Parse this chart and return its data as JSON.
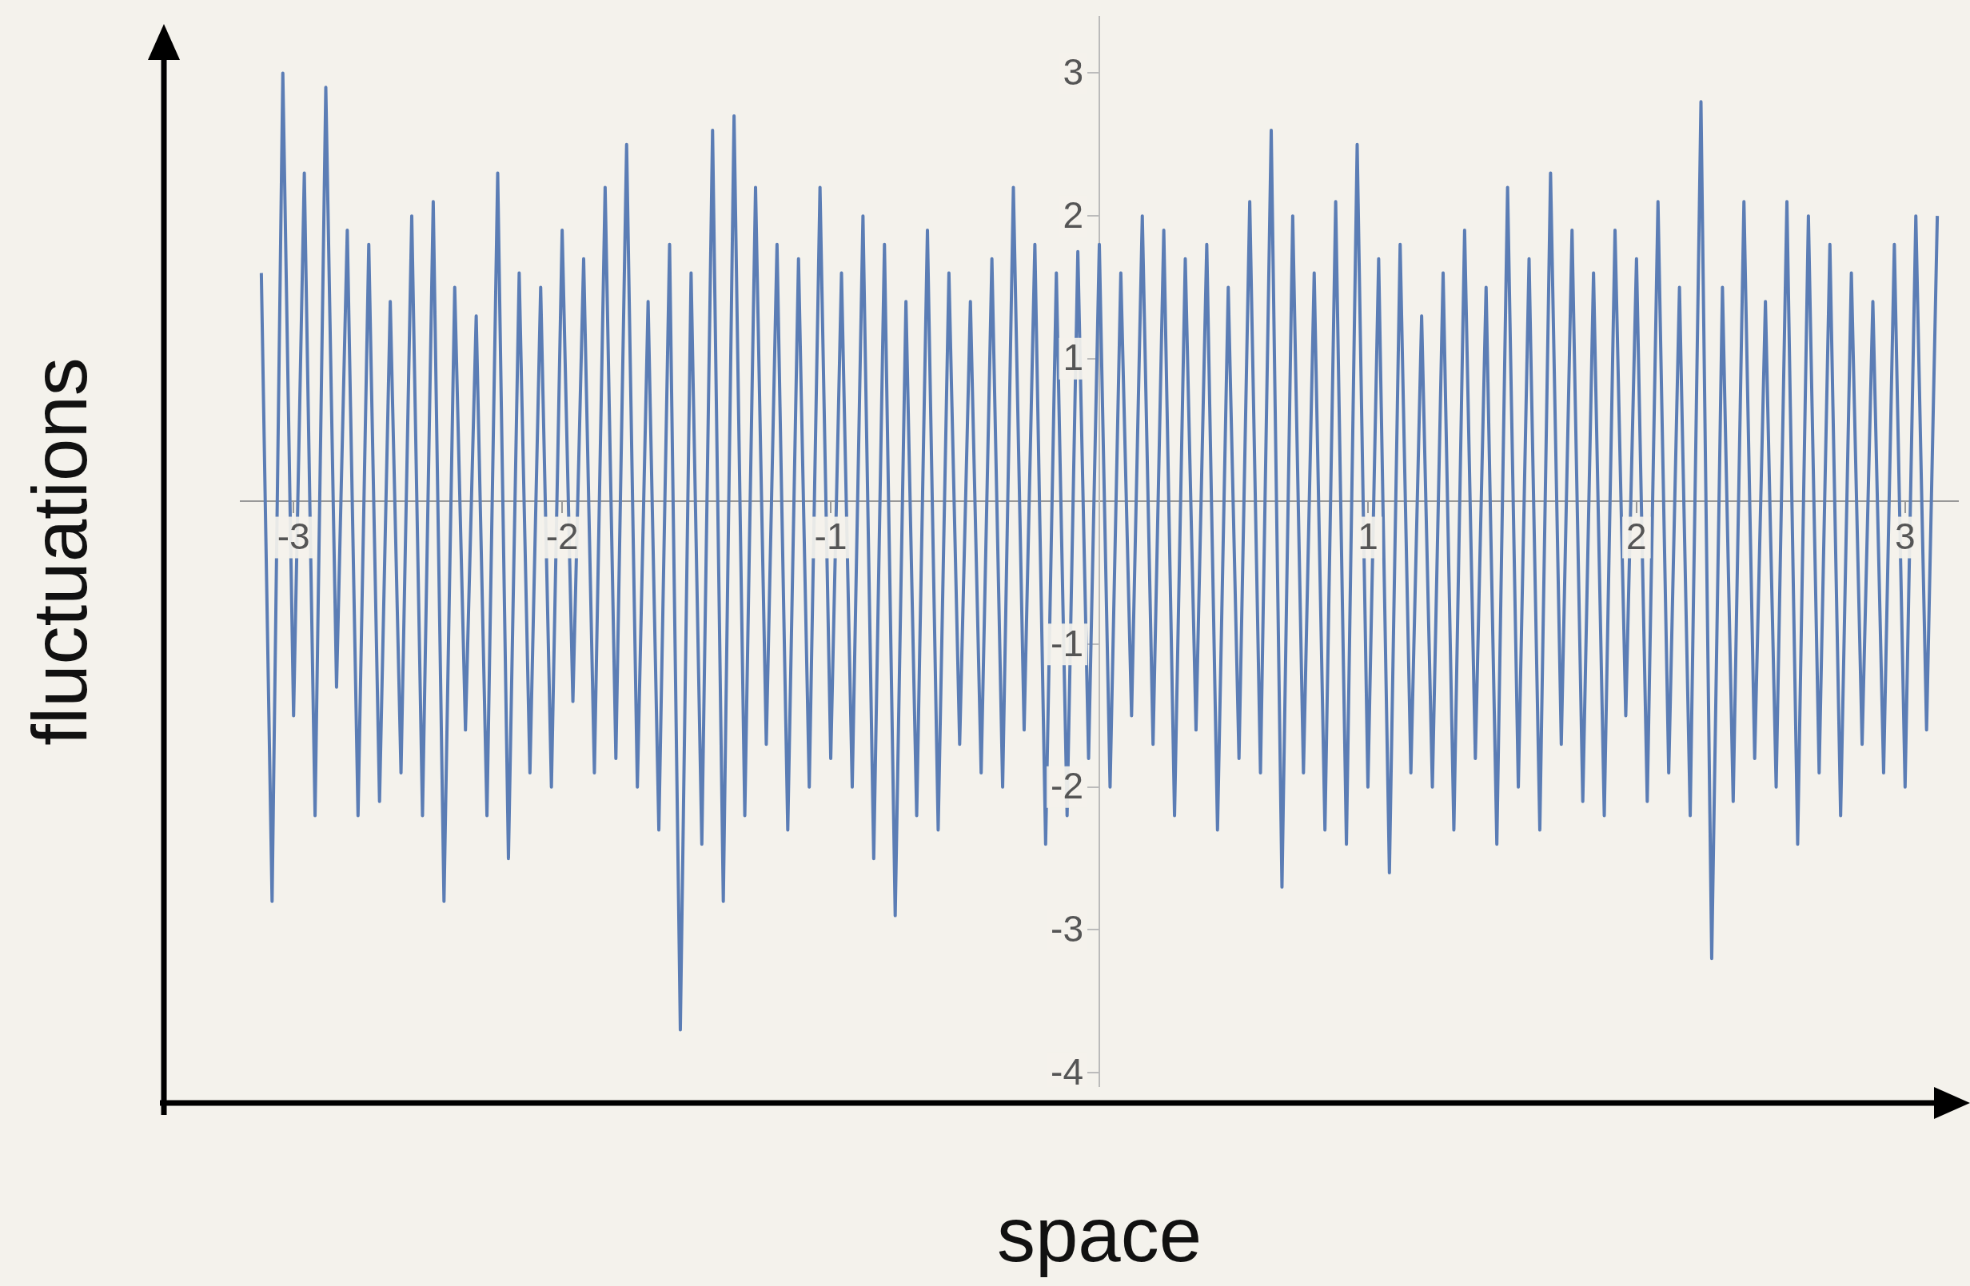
{
  "chart_data": {
    "type": "line",
    "xlabel": "space",
    "ylabel": "fluctuations",
    "color": "#5b7db5",
    "marker": "none",
    "grid": false,
    "legend": false,
    "xlim": [
      -3.2,
      3.2
    ],
    "ylim": [
      -4.1,
      3.4
    ],
    "xticks": [
      -3,
      -2,
      -1,
      1,
      2,
      3
    ],
    "yticks": [
      -4,
      -3,
      -2,
      -1,
      1,
      2,
      3
    ],
    "x": [
      -3.12,
      -3.08,
      -3.04,
      -3.0,
      -2.96,
      -2.92,
      -2.88,
      -2.84,
      -2.8,
      -2.76,
      -2.72,
      -2.68,
      -2.64,
      -2.6,
      -2.56,
      -2.52,
      -2.48,
      -2.44,
      -2.4,
      -2.36,
      -2.32,
      -2.28,
      -2.24,
      -2.2,
      -2.16,
      -2.12,
      -2.08,
      -2.04,
      -2.0,
      -1.96,
      -1.92,
      -1.88,
      -1.84,
      -1.8,
      -1.76,
      -1.72,
      -1.68,
      -1.64,
      -1.6,
      -1.56,
      -1.52,
      -1.48,
      -1.44,
      -1.4,
      -1.36,
      -1.32,
      -1.28,
      -1.24,
      -1.2,
      -1.16,
      -1.12,
      -1.08,
      -1.04,
      -1.0,
      -0.96,
      -0.92,
      -0.88,
      -0.84,
      -0.8,
      -0.76,
      -0.72,
      -0.68,
      -0.64,
      -0.6,
      -0.56,
      -0.52,
      -0.48,
      -0.44,
      -0.4,
      -0.36,
      -0.32,
      -0.28,
      -0.24,
      -0.2,
      -0.16,
      -0.12,
      -0.08,
      -0.04,
      0.0,
      0.04,
      0.08,
      0.12,
      0.16,
      0.2,
      0.24,
      0.28,
      0.32,
      0.36,
      0.4,
      0.44,
      0.48,
      0.52,
      0.56,
      0.6,
      0.64,
      0.68,
      0.72,
      0.76,
      0.8,
      0.84,
      0.88,
      0.92,
      0.96,
      1.0,
      1.04,
      1.08,
      1.12,
      1.16,
      1.2,
      1.24,
      1.28,
      1.32,
      1.36,
      1.4,
      1.44,
      1.48,
      1.52,
      1.56,
      1.6,
      1.64,
      1.68,
      1.72,
      1.76,
      1.8,
      1.84,
      1.88,
      1.92,
      1.96,
      2.0,
      2.04,
      2.08,
      2.12,
      2.16,
      2.2,
      2.24,
      2.28,
      2.32,
      2.36,
      2.4,
      2.44,
      2.48,
      2.52,
      2.56,
      2.6,
      2.64,
      2.68,
      2.72,
      2.76,
      2.8,
      2.84,
      2.88,
      2.92,
      2.96,
      3.0,
      3.04,
      3.08,
      3.12
    ],
    "values": [
      1.6,
      -2.8,
      3.0,
      -1.5,
      2.3,
      -2.2,
      2.9,
      -1.3,
      1.9,
      -2.2,
      1.8,
      -2.1,
      1.4,
      -1.9,
      2.0,
      -2.2,
      2.1,
      -2.8,
      1.5,
      -1.6,
      1.3,
      -2.2,
      2.3,
      -2.5,
      1.6,
      -1.9,
      1.5,
      -2.0,
      1.9,
      -1.4,
      1.7,
      -1.9,
      2.2,
      -1.8,
      2.5,
      -2.0,
      1.4,
      -2.3,
      1.8,
      -3.7,
      1.6,
      -2.4,
      2.6,
      -2.8,
      2.7,
      -2.2,
      2.2,
      -1.7,
      1.8,
      -2.3,
      1.7,
      -2.0,
      2.2,
      -1.8,
      1.6,
      -2.0,
      2.0,
      -2.5,
      1.8,
      -2.9,
      1.4,
      -2.2,
      1.9,
      -2.3,
      1.6,
      -1.7,
      1.4,
      -1.9,
      1.7,
      -2.0,
      2.2,
      -1.6,
      1.8,
      -2.4,
      1.6,
      -2.2,
      1.75,
      -1.8,
      1.8,
      -2.0,
      1.6,
      -1.5,
      2.0,
      -1.7,
      1.9,
      -2.2,
      1.7,
      -1.6,
      1.8,
      -2.3,
      1.5,
      -1.8,
      2.1,
      -1.9,
      2.6,
      -2.7,
      2.0,
      -1.9,
      1.6,
      -2.3,
      2.1,
      -2.4,
      2.5,
      -2.0,
      1.7,
      -2.6,
      1.8,
      -1.9,
      1.3,
      -2.0,
      1.6,
      -2.3,
      1.9,
      -1.8,
      1.5,
      -2.4,
      2.2,
      -2.0,
      1.7,
      -2.3,
      2.3,
      -1.7,
      1.9,
      -2.1,
      1.6,
      -2.2,
      1.9,
      -1.5,
      1.7,
      -2.1,
      2.1,
      -1.9,
      1.5,
      -2.2,
      2.8,
      -3.2,
      1.5,
      -2.1,
      2.1,
      -1.8,
      1.4,
      -2.0,
      2.1,
      -2.4,
      2.0,
      -1.9,
      1.8,
      -2.2,
      1.6,
      -1.7,
      1.4,
      -1.9,
      1.8,
      -2.0,
      2.0,
      -1.6,
      2.0
    ]
  }
}
